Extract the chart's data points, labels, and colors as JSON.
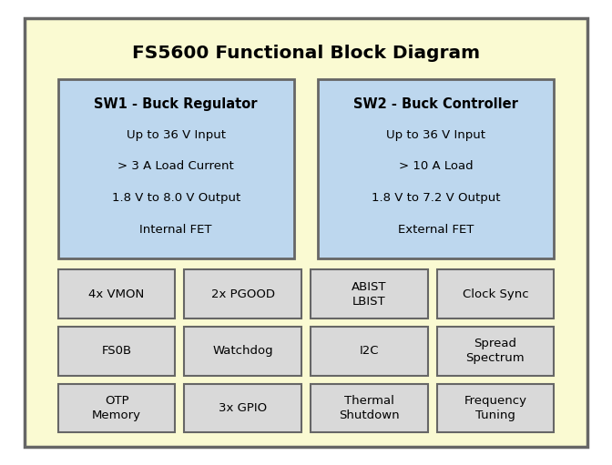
{
  "title": "FS5600 Functional Block Diagram",
  "outer_bg": "#FAFAD2",
  "outer_border": "#666666",
  "sw1_title": "SW1 - Buck Regulator",
  "sw1_lines": [
    "Up to 36 V Input",
    "> 3 A Load Current",
    "1.8 V to 8.0 V Output",
    "Internal FET"
  ],
  "sw2_title": "SW2 - Buck Controller",
  "sw2_lines": [
    "Up to 36 V Input",
    "> 10 A Load",
    "1.8 V to 7.2 V Output",
    "External FET"
  ],
  "sw_bg": "#BDD7EE",
  "sw_border": "#666666",
  "small_bg": "#D9D9D9",
  "small_border": "#666666",
  "small_boxes": [
    [
      "4x VMON",
      "2x PGOOD",
      "ABIST\nLBIST",
      "Clock Sync"
    ],
    [
      "FS0B",
      "Watchdog",
      "I2C",
      "Spread\nSpectrum"
    ],
    [
      "OTP\nMemory",
      "3x GPIO",
      "Thermal\nShutdown",
      "Frequency\nTuning"
    ]
  ],
  "fig_w": 6.72,
  "fig_h": 5.11,
  "dpi": 100
}
